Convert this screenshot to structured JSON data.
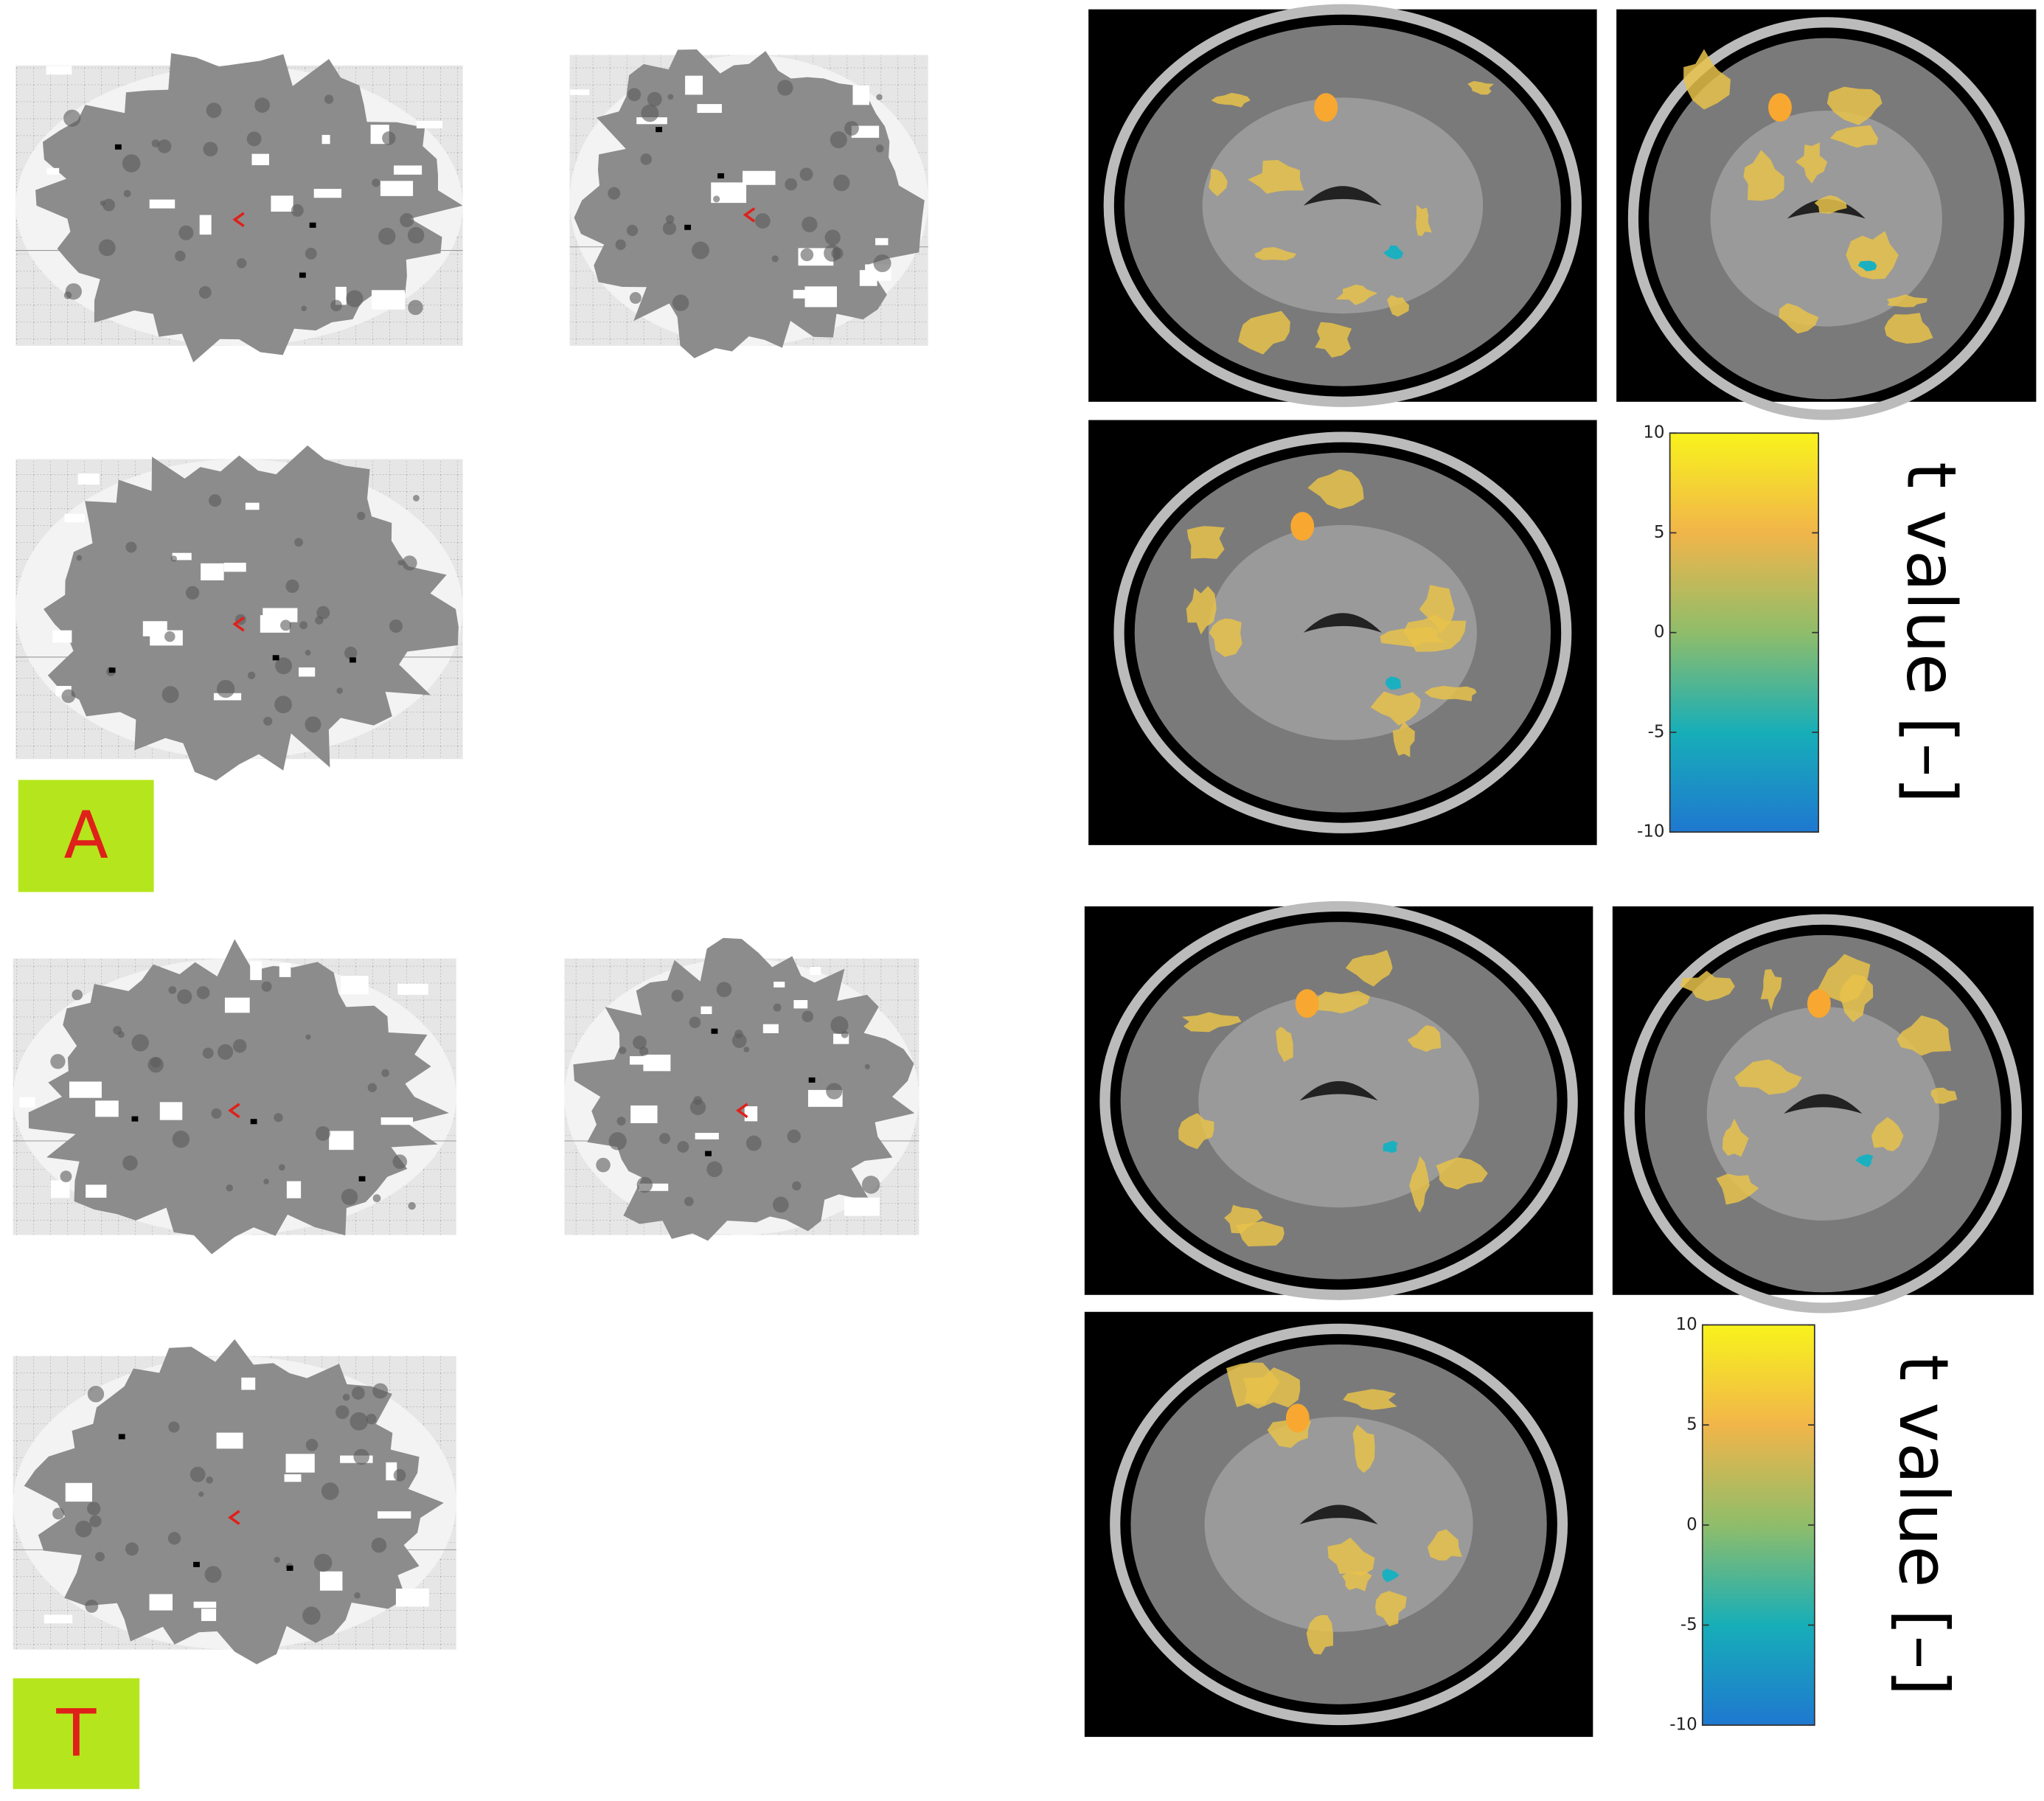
{
  "panels": [
    {
      "label": "A",
      "colorbar": {
        "lim": [
          -10,
          10
        ],
        "ticks": [
          10,
          5,
          0,
          -5,
          -10
        ],
        "label": "t value [–]"
      }
    },
    {
      "label": "T",
      "colorbar": {
        "lim": [
          -10,
          10
        ],
        "ticks": [
          10,
          5,
          0,
          -5,
          -10
        ],
        "label": "t value [–]"
      }
    }
  ]
}
